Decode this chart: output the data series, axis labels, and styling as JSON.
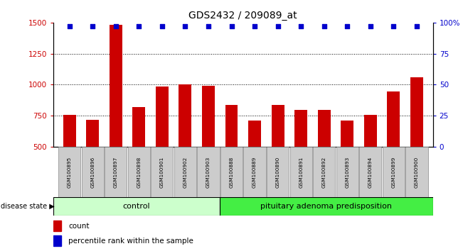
{
  "title": "GDS2432 / 209089_at",
  "samples": [
    "GSM100895",
    "GSM100896",
    "GSM100897",
    "GSM100898",
    "GSM100901",
    "GSM100902",
    "GSM100903",
    "GSM100888",
    "GSM100889",
    "GSM100890",
    "GSM100891",
    "GSM100892",
    "GSM100893",
    "GSM100894",
    "GSM100899",
    "GSM100900"
  ],
  "counts": [
    760,
    720,
    1480,
    820,
    985,
    1005,
    990,
    835,
    710,
    835,
    800,
    795,
    710,
    755,
    945,
    1060
  ],
  "percentiles": [
    100,
    100,
    100,
    100,
    100,
    100,
    100,
    100,
    100,
    100,
    100,
    100,
    100,
    100,
    100,
    100
  ],
  "control_count": 7,
  "disease_label": "pituitary adenoma predisposition",
  "control_label": "control",
  "disease_state_label": "disease state",
  "ylim_left": [
    500,
    1500
  ],
  "ylim_right": [
    0,
    100
  ],
  "yticks_left": [
    500,
    750,
    1000,
    1250,
    1500
  ],
  "yticks_right": [
    0,
    25,
    50,
    75,
    100
  ],
  "bar_color": "#cc0000",
  "dot_color": "#0000cc",
  "control_bg": "#ccffcc",
  "disease_bg": "#44ee44",
  "grid_color": "#000000",
  "title_fontsize": 10,
  "tick_fontsize": 7.5,
  "label_fontsize": 7.5,
  "legend_fontsize": 7.5
}
